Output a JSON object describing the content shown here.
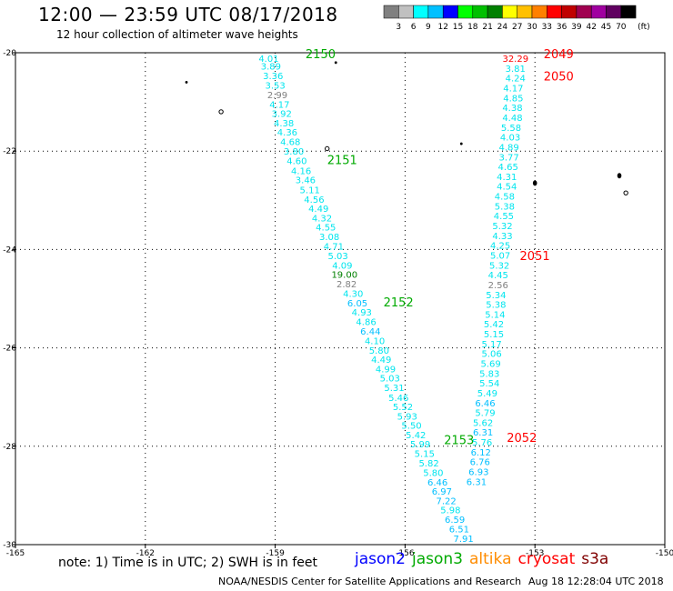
{
  "title": "12:00 — 23:59 UTC 08/17/2018",
  "subtitle": "12 hour collection of altimeter wave heights",
  "note": "note:  1) Time is in UTC;  2) SWH is in feet",
  "credit": "NOAA/NESDIS Center for Satellite Applications and Research",
  "timestamp": "Aug 18 12:28:04 UTC 2018",
  "color_scale": {
    "unit": "(ft)",
    "bins": [
      {
        "label": "",
        "color": "#808080"
      },
      {
        "label": "3",
        "color": "#c0c0c0"
      },
      {
        "label": "6",
        "color": "#00ffff"
      },
      {
        "label": "9",
        "color": "#00c0ff"
      },
      {
        "label": "12",
        "color": "#0000ff"
      },
      {
        "label": "15",
        "color": "#00ff00"
      },
      {
        "label": "18",
        "color": "#00c000"
      },
      {
        "label": "21",
        "color": "#008000"
      },
      {
        "label": "24",
        "color": "#ffff00"
      },
      {
        "label": "27",
        "color": "#ffc000"
      },
      {
        "label": "30",
        "color": "#ff8000"
      },
      {
        "label": "33",
        "color": "#ff0000"
      },
      {
        "label": "36",
        "color": "#c00000"
      },
      {
        "label": "39",
        "color": "#a00050"
      },
      {
        "label": "42",
        "color": "#a000a0"
      },
      {
        "label": "45",
        "color": "#600060"
      },
      {
        "label": "70",
        "color": "#000000"
      }
    ]
  },
  "satellites": [
    {
      "name": "jason2",
      "color": "#0000ff"
    },
    {
      "name": "jason3",
      "color": "#00aa00"
    },
    {
      "name": "altika",
      "color": "#ff8c00"
    },
    {
      "name": "cryosat",
      "color": "#ff0000"
    },
    {
      "name": "s3a",
      "color": "#800000"
    }
  ],
  "chart_data": {
    "type": "scatter",
    "xlim": [
      -165,
      -150
    ],
    "ylim": [
      -30,
      -20
    ],
    "x_ticks": [
      "-165",
      "-162",
      "-159",
      "-156",
      "-153",
      "-150"
    ],
    "y_ticks": [
      "-20",
      "-22",
      "-24",
      "-26",
      "-28",
      "-30"
    ],
    "grid": true,
    "tracks": [
      {
        "satellite": "jason3",
        "pass_labels": [
          {
            "text": "2150",
            "lon": -158.3,
            "lat": -20.0
          },
          {
            "text": "2151",
            "lon": -157.8,
            "lat": -22.15
          },
          {
            "text": "2152",
            "lon": -156.5,
            "lat": -25.05
          },
          {
            "text": "2153",
            "lon": -155.1,
            "lat": -27.85
          }
        ],
        "points": [
          {
            "lon": -159.15,
            "lat": -20.02,
            "swh": "4.01",
            "color": "#00e5ee"
          },
          {
            "lon": -159.1,
            "lat": -20.18,
            "swh": "3.89",
            "color": "#00e5ee"
          },
          {
            "lon": -159.05,
            "lat": -20.37,
            "swh": "3.36",
            "color": "#00e5ee"
          },
          {
            "lon": -159.0,
            "lat": -20.56,
            "swh": "3.53",
            "color": "#00e5ee"
          },
          {
            "lon": -158.95,
            "lat": -20.76,
            "swh": "2.99",
            "color": "#808080"
          },
          {
            "lon": -158.9,
            "lat": -20.95,
            "swh": "4.17",
            "color": "#00e5ee"
          },
          {
            "lon": -158.85,
            "lat": -21.14,
            "swh": "3.92",
            "color": "#00e5ee"
          },
          {
            "lon": -158.8,
            "lat": -21.33,
            "swh": "4.38",
            "color": "#00e5ee"
          },
          {
            "lon": -158.72,
            "lat": -21.52,
            "swh": "4.36",
            "color": "#00e5ee"
          },
          {
            "lon": -158.65,
            "lat": -21.71,
            "swh": "4.68",
            "color": "#00e5ee"
          },
          {
            "lon": -158.57,
            "lat": -21.9,
            "swh": "3.80",
            "color": "#00e5ee"
          },
          {
            "lon": -158.5,
            "lat": -22.1,
            "swh": "4.60",
            "color": "#00e5ee"
          },
          {
            "lon": -158.4,
            "lat": -22.3,
            "swh": "4.16",
            "color": "#00e5ee"
          },
          {
            "lon": -158.3,
            "lat": -22.49,
            "swh": "3.46",
            "color": "#00e5ee"
          },
          {
            "lon": -158.2,
            "lat": -22.69,
            "swh": "5.11",
            "color": "#00e5ee"
          },
          {
            "lon": -158.1,
            "lat": -22.88,
            "swh": "4.56",
            "color": "#00e5ee"
          },
          {
            "lon": -158.0,
            "lat": -23.07,
            "swh": "4.49",
            "color": "#00e5ee"
          },
          {
            "lon": -157.92,
            "lat": -23.26,
            "swh": "4.32",
            "color": "#00e5ee"
          },
          {
            "lon": -157.83,
            "lat": -23.45,
            "swh": "4.55",
            "color": "#00e5ee"
          },
          {
            "lon": -157.75,
            "lat": -23.64,
            "swh": "3.08",
            "color": "#00e5ee"
          },
          {
            "lon": -157.65,
            "lat": -23.84,
            "swh": "4.71",
            "color": "#00e5ee"
          },
          {
            "lon": -157.55,
            "lat": -24.03,
            "swh": "5.03",
            "color": "#00e5ee"
          },
          {
            "lon": -157.45,
            "lat": -24.22,
            "swh": "4.09",
            "color": "#00e5ee"
          },
          {
            "lon": -157.4,
            "lat": -24.41,
            "swh": "19.00",
            "color": "#008000"
          },
          {
            "lon": -157.35,
            "lat": -24.6,
            "swh": "2.82",
            "color": "#808080"
          },
          {
            "lon": -157.2,
            "lat": -24.8,
            "swh": "4.30",
            "color": "#00e5ee"
          },
          {
            "lon": -157.1,
            "lat": -24.99,
            "swh": "6.05",
            "color": "#00bfff"
          },
          {
            "lon": -157.0,
            "lat": -25.18,
            "swh": "4.93",
            "color": "#00e5ee"
          },
          {
            "lon": -156.9,
            "lat": -25.37,
            "swh": "4.86",
            "color": "#00e5ee"
          },
          {
            "lon": -156.8,
            "lat": -25.56,
            "swh": "6.44",
            "color": "#00bfff"
          },
          {
            "lon": -156.7,
            "lat": -25.76,
            "swh": "4.10",
            "color": "#00e5ee"
          },
          {
            "lon": -156.6,
            "lat": -25.95,
            "swh": "5.80",
            "color": "#00e5ee"
          },
          {
            "lon": -156.55,
            "lat": -26.14,
            "swh": "4.49",
            "color": "#00e5ee"
          },
          {
            "lon": -156.45,
            "lat": -26.33,
            "swh": "4.99",
            "color": "#00e5ee"
          },
          {
            "lon": -156.35,
            "lat": -26.52,
            "swh": "5.03",
            "color": "#00e5ee"
          },
          {
            "lon": -156.25,
            "lat": -26.71,
            "swh": "5.31",
            "color": "#00e5ee"
          },
          {
            "lon": -156.15,
            "lat": -26.91,
            "swh": "5.46",
            "color": "#00e5ee"
          },
          {
            "lon": -156.05,
            "lat": -27.1,
            "swh": "5.52",
            "color": "#00e5ee"
          },
          {
            "lon": -155.95,
            "lat": -27.29,
            "swh": "5.93",
            "color": "#00e5ee"
          },
          {
            "lon": -155.85,
            "lat": -27.48,
            "swh": "5.50",
            "color": "#00e5ee"
          },
          {
            "lon": -155.75,
            "lat": -27.67,
            "swh": "5.42",
            "color": "#00e5ee"
          },
          {
            "lon": -155.65,
            "lat": -27.86,
            "swh": "5.99",
            "color": "#00e5ee"
          },
          {
            "lon": -155.55,
            "lat": -28.05,
            "swh": "5.15",
            "color": "#00e5ee"
          },
          {
            "lon": -155.45,
            "lat": -28.24,
            "swh": "5.82",
            "color": "#00e5ee"
          },
          {
            "lon": -155.35,
            "lat": -28.44,
            "swh": "5.80",
            "color": "#00e5ee"
          },
          {
            "lon": -155.25,
            "lat": -28.63,
            "swh": "6.46",
            "color": "#00bfff"
          },
          {
            "lon": -155.15,
            "lat": -28.82,
            "swh": "6.97",
            "color": "#00bfff"
          },
          {
            "lon": -155.05,
            "lat": -29.01,
            "swh": "7.22",
            "color": "#00bfff"
          },
          {
            "lon": -154.95,
            "lat": -29.2,
            "swh": "5.98",
            "color": "#00e5ee"
          },
          {
            "lon": -154.85,
            "lat": -29.39,
            "swh": "6.59",
            "color": "#00bfff"
          },
          {
            "lon": -154.75,
            "lat": -29.58,
            "swh": "6.51",
            "color": "#00bfff"
          },
          {
            "lon": -154.65,
            "lat": -29.78,
            "swh": "7.91",
            "color": "#00bfff"
          }
        ]
      },
      {
        "satellite": "cryosat",
        "pass_labels": [
          {
            "text": "2049",
            "lon": -152.8,
            "lat": -20.0
          },
          {
            "text": "2050",
            "lon": -152.8,
            "lat": -20.45
          },
          {
            "text": "2051",
            "lon": -153.35,
            "lat": -24.1
          },
          {
            "text": "2052",
            "lon": -153.65,
            "lat": -27.8
          }
        ],
        "points": [
          {
            "lon": -153.45,
            "lat": -20.02,
            "swh": "32.29",
            "color": "#ff0000"
          },
          {
            "lon": -153.45,
            "lat": -20.22,
            "swh": "3.81",
            "color": "#00e5ee"
          },
          {
            "lon": -153.45,
            "lat": -20.42,
            "swh": "4.24",
            "color": "#00e5ee"
          },
          {
            "lon": -153.5,
            "lat": -20.62,
            "swh": "4.17",
            "color": "#00e5ee"
          },
          {
            "lon": -153.5,
            "lat": -20.82,
            "swh": "4.85",
            "color": "#00e5ee"
          },
          {
            "lon": -153.52,
            "lat": -21.02,
            "swh": "4.38",
            "color": "#00e5ee"
          },
          {
            "lon": -153.52,
            "lat": -21.22,
            "swh": "4.48",
            "color": "#00e5ee"
          },
          {
            "lon": -153.55,
            "lat": -21.42,
            "swh": "5.58",
            "color": "#00e5ee"
          },
          {
            "lon": -153.57,
            "lat": -21.62,
            "swh": "4.03",
            "color": "#00e5ee"
          },
          {
            "lon": -153.6,
            "lat": -21.82,
            "swh": "4.89",
            "color": "#00e5ee"
          },
          {
            "lon": -153.6,
            "lat": -22.02,
            "swh": "3.77",
            "color": "#00e5ee"
          },
          {
            "lon": -153.62,
            "lat": -22.22,
            "swh": "4.65",
            "color": "#00e5ee"
          },
          {
            "lon": -153.65,
            "lat": -22.42,
            "swh": "4.31",
            "color": "#00e5ee"
          },
          {
            "lon": -153.65,
            "lat": -22.62,
            "swh": "4.54",
            "color": "#00e5ee"
          },
          {
            "lon": -153.7,
            "lat": -22.82,
            "swh": "4.58",
            "color": "#00e5ee"
          },
          {
            "lon": -153.7,
            "lat": -23.02,
            "swh": "5.38",
            "color": "#00e5ee"
          },
          {
            "lon": -153.72,
            "lat": -23.22,
            "swh": "4.55",
            "color": "#00e5ee"
          },
          {
            "lon": -153.75,
            "lat": -23.42,
            "swh": "5.32",
            "color": "#00e5ee"
          },
          {
            "lon": -153.75,
            "lat": -23.62,
            "swh": "4.33",
            "color": "#00e5ee"
          },
          {
            "lon": -153.8,
            "lat": -23.82,
            "swh": "4.25",
            "color": "#00e5ee"
          },
          {
            "lon": -153.8,
            "lat": -24.02,
            "swh": "5.07",
            "color": "#00e5ee"
          },
          {
            "lon": -153.82,
            "lat": -24.22,
            "swh": "5.32",
            "color": "#00e5ee"
          },
          {
            "lon": -153.85,
            "lat": -24.42,
            "swh": "4.45",
            "color": "#00e5ee"
          },
          {
            "lon": -153.85,
            "lat": -24.62,
            "swh": "2.56",
            "color": "#808080"
          },
          {
            "lon": -153.9,
            "lat": -24.82,
            "swh": "5.34",
            "color": "#00e5ee"
          },
          {
            "lon": -153.9,
            "lat": -25.02,
            "swh": "5.38",
            "color": "#00e5ee"
          },
          {
            "lon": -153.92,
            "lat": -25.22,
            "swh": "5.14",
            "color": "#00e5ee"
          },
          {
            "lon": -153.95,
            "lat": -25.42,
            "swh": "5.42",
            "color": "#00e5ee"
          },
          {
            "lon": -153.95,
            "lat": -25.62,
            "swh": "5.15",
            "color": "#00e5ee"
          },
          {
            "lon": -154.0,
            "lat": -25.82,
            "swh": "5.17",
            "color": "#00e5ee"
          },
          {
            "lon": -154.0,
            "lat": -26.02,
            "swh": "5.06",
            "color": "#00e5ee"
          },
          {
            "lon": -154.02,
            "lat": -26.22,
            "swh": "5.69",
            "color": "#00e5ee"
          },
          {
            "lon": -154.05,
            "lat": -26.42,
            "swh": "5.83",
            "color": "#00e5ee"
          },
          {
            "lon": -154.05,
            "lat": -26.62,
            "swh": "5.54",
            "color": "#00e5ee"
          },
          {
            "lon": -154.1,
            "lat": -26.82,
            "swh": "5.49",
            "color": "#00e5ee"
          },
          {
            "lon": -154.15,
            "lat": -27.02,
            "swh": "6.46",
            "color": "#00bfff"
          },
          {
            "lon": -154.15,
            "lat": -27.22,
            "swh": "5.79",
            "color": "#00e5ee"
          },
          {
            "lon": -154.2,
            "lat": -27.42,
            "swh": "5.62",
            "color": "#00e5ee"
          },
          {
            "lon": -154.2,
            "lat": -27.62,
            "swh": "6.31",
            "color": "#00bfff"
          },
          {
            "lon": -154.22,
            "lat": -27.82,
            "swh": "5.76",
            "color": "#00e5ee"
          },
          {
            "lon": -154.25,
            "lat": -28.02,
            "swh": "6.12",
            "color": "#00bfff"
          },
          {
            "lon": -154.27,
            "lat": -28.22,
            "swh": "6.76",
            "color": "#00bfff"
          },
          {
            "lon": -154.3,
            "lat": -28.42,
            "swh": "6.93",
            "color": "#00bfff"
          },
          {
            "lon": -154.35,
            "lat": -28.62,
            "swh": "6.31",
            "color": "#00bfff"
          }
        ]
      }
    ],
    "islands": [
      {
        "lon": -161.05,
        "lat": -20.6,
        "shape": "dot"
      },
      {
        "lon": -160.25,
        "lat": -21.2,
        "shape": "ring"
      },
      {
        "lon": -157.8,
        "lat": -21.95,
        "shape": "ring"
      },
      {
        "lon": -157.6,
        "lat": -20.2,
        "shape": "dot"
      },
      {
        "lon": -154.7,
        "lat": -21.85,
        "shape": "dot"
      },
      {
        "lon": -153.0,
        "lat": -22.65,
        "shape": "blob"
      },
      {
        "lon": -151.05,
        "lat": -22.5,
        "shape": "blob"
      },
      {
        "lon": -150.9,
        "lat": -22.85,
        "shape": "ring"
      }
    ]
  }
}
